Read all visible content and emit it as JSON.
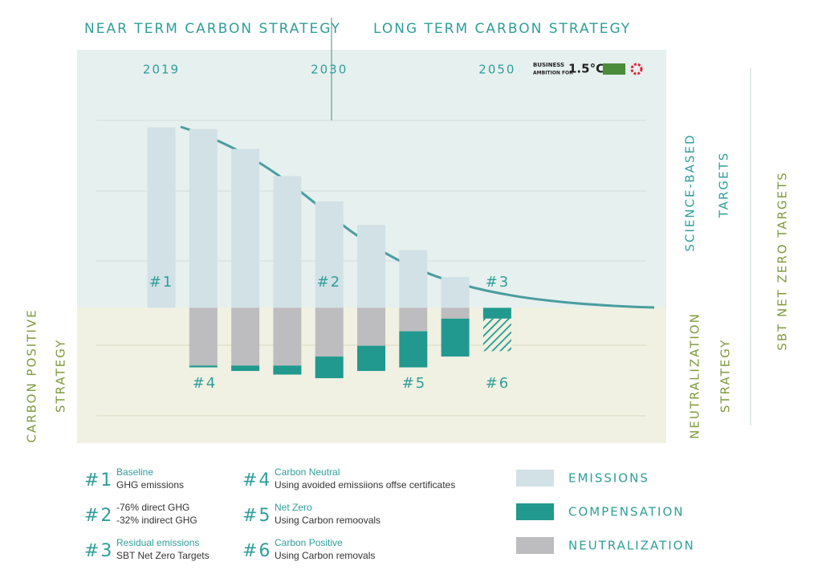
{
  "header": {
    "near_term": "NEAR TERM CARBON STRATEGY",
    "long_term": "LONG TERM CARBON STRATEGY"
  },
  "logo": {
    "line1": "BUSINESS",
    "line2": "AMBITION FOR",
    "line3": "1.5°C"
  },
  "side_labels": {
    "science_based": [
      "SCIENCE-BASED",
      "TARGETS"
    ],
    "sbt_net_zero": "SBT NET ZERO TARGETS",
    "carbon_positive": [
      "CARBON POSITIVE",
      "STRATEGY"
    ],
    "neutralization": [
      "NEUTRALIZATION",
      "STRATEGY"
    ]
  },
  "chart_data": {
    "type": "stacked_bar",
    "categories": [
      "2019",
      null,
      null,
      null,
      "2030",
      null,
      null,
      null,
      "2050"
    ],
    "ylim": [
      -75,
      143
    ],
    "series": [
      {
        "name": "EMISSIONS",
        "color": "#d2e1e6",
        "values": [
          100,
          99,
          88,
          73,
          59,
          46,
          32,
          17,
          0
        ]
      },
      {
        "name": "NEUTRALIZATION",
        "color": "#bdbcbe",
        "values": [
          0,
          -32,
          -32,
          -32,
          -27,
          -21,
          -13,
          -6,
          0
        ]
      },
      {
        "name": "COMPENSATION",
        "color": "#21998f",
        "values": [
          0,
          -1,
          -3,
          -5,
          -12,
          -14,
          -20,
          -21,
          -6
        ]
      },
      {
        "color": "#21998f",
        "pattern": "hatch",
        "values": [
          0,
          0,
          0,
          0,
          0,
          0,
          0,
          0,
          -18
        ]
      }
    ],
    "annotations": [
      "#1",
      "#2",
      "#3",
      "#4",
      "#5",
      "#6"
    ]
  },
  "notes": [
    {
      "marker": "#1",
      "title": "Baseline",
      "text": "GHG emissions"
    },
    {
      "marker": "#2",
      "lines": [
        "-76% direct GHG",
        "-32% indirect GHG"
      ]
    },
    {
      "marker": "#3",
      "title": "Residual emissions",
      "text": "SBT Net Zero Targets"
    },
    {
      "marker": "#4",
      "title": "Carbon Neutral",
      "text": "Using avoided emissiions offse certificates"
    },
    {
      "marker": "#5",
      "title": "Net Zero",
      "text": "Using Carbon remoovals"
    },
    {
      "marker": "#6",
      "title": "Carbon Positive",
      "text": "Using Carbon removals"
    }
  ]
}
